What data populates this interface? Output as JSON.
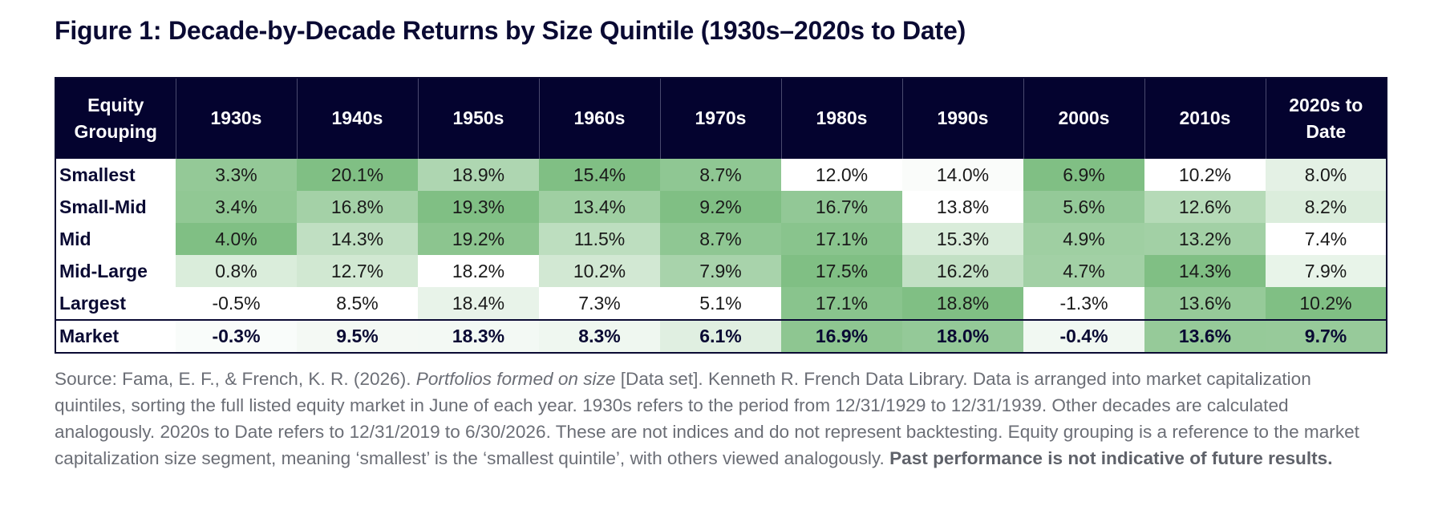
{
  "title": "Figure 1: Decade-by-Decade Returns by Size Quintile (1930s–2020s to Date)",
  "chart_data": {
    "type": "table",
    "title": "Figure 1: Decade-by-Decade Returns by Size Quintile (1930s–2020s to Date)",
    "header_first_line1": "Equity",
    "header_first_line2": "Grouping",
    "columns": [
      {
        "l1": "1930s",
        "l2": ""
      },
      {
        "l1": "1940s",
        "l2": ""
      },
      {
        "l1": "1950s",
        "l2": ""
      },
      {
        "l1": "1960s",
        "l2": ""
      },
      {
        "l1": "1970s",
        "l2": ""
      },
      {
        "l1": "1980s",
        "l2": ""
      },
      {
        "l1": "1990s",
        "l2": ""
      },
      {
        "l1": "2000s",
        "l2": ""
      },
      {
        "l1": "2010s",
        "l2": ""
      },
      {
        "l1": "2020s to",
        "l2": "Date"
      }
    ],
    "rows": [
      {
        "label": "Smallest",
        "values": [
          "3.3%",
          "20.1%",
          "18.9%",
          "15.4%",
          "8.7%",
          "12.0%",
          "14.0%",
          "6.9%",
          "10.2%",
          "8.0%"
        ]
      },
      {
        "label": "Small-Mid",
        "values": [
          "3.4%",
          "16.8%",
          "19.3%",
          "13.4%",
          "9.2%",
          "16.7%",
          "13.8%",
          "5.6%",
          "12.6%",
          "8.2%"
        ]
      },
      {
        "label": "Mid",
        "values": [
          "4.0%",
          "14.3%",
          "19.2%",
          "11.5%",
          "8.7%",
          "17.1%",
          "15.3%",
          "4.9%",
          "13.2%",
          "7.4%"
        ]
      },
      {
        "label": "Mid-Large",
        "values": [
          "0.8%",
          "12.7%",
          "18.2%",
          "10.2%",
          "7.9%",
          "17.5%",
          "16.2%",
          "4.7%",
          "14.3%",
          "7.9%"
        ]
      },
      {
        "label": "Largest",
        "values": [
          "-0.5%",
          "8.5%",
          "18.4%",
          "7.3%",
          "5.1%",
          "17.1%",
          "18.8%",
          "-1.3%",
          "13.6%",
          "10.2%"
        ]
      },
      {
        "label": "Market",
        "values": [
          "-0.3%",
          "9.5%",
          "18.3%",
          "8.3%",
          "6.1%",
          "16.9%",
          "18.0%",
          "-0.4%",
          "13.6%",
          "9.7%"
        ]
      }
    ],
    "colors": {
      "header_bg": "#04032f",
      "heat_low": "#ffffff",
      "heat_high": "#80bf84"
    }
  },
  "source": {
    "part1": "Source: Fama, E. F., & French, K. R. (2026). ",
    "italic": "Portfolios formed on size",
    "part2": " [Data set]. Kenneth R. French Data Library. Data is arranged into market capitalization quintiles, sorting the full listed equity market in June of each year. 1930s refers to the period from 12/31/1929 to 12/31/1939. Other decades are calculated analogously. 2020s to Date refers to 12/31/2019 to 6/30/2026. These are not indices and do not represent backtesting. Equity grouping is a reference to the market capitalization size segment, meaning ‘smallest’ is the ‘smallest quintile’, with others viewed analogously. ",
    "bold": "Past performance is not indicative of future results."
  }
}
